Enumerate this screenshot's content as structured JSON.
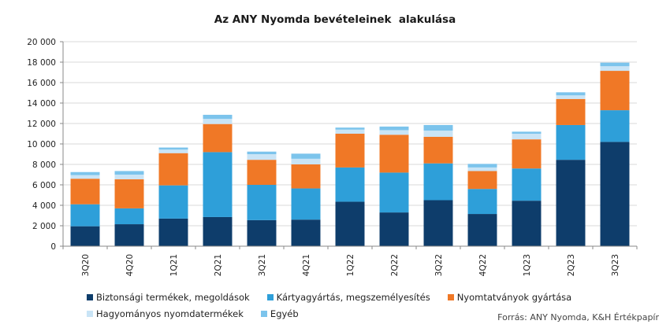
{
  "chart_data": {
    "type": "bar",
    "stacked": true,
    "title": "Az ANY Nyomda bevételeinek  alakulása",
    "categories": [
      "3Q20",
      "4Q20",
      "1Q21",
      "2Q21",
      "3Q21",
      "4Q21",
      "1Q22",
      "2Q22",
      "3Q22",
      "4Q22",
      "1Q23",
      "2Q23",
      "3Q23"
    ],
    "ylim": [
      0,
      20000
    ],
    "yticks": [
      "0",
      "2 000",
      "4 000",
      "6 000",
      "8 000",
      "10 000",
      "12 000",
      "14 000",
      "16 000",
      "18 000",
      "20 000"
    ],
    "grid": true,
    "legend_position": "bottom",
    "series": [
      {
        "name": "Biztonsági termékek, megoldások",
        "color": "#0e3d6b",
        "values": [
          1950,
          2150,
          2700,
          2850,
          2550,
          2600,
          4350,
          3300,
          4500,
          3150,
          4450,
          8450,
          10200
        ]
      },
      {
        "name": "Kártyagyártás, megszemélyesítés",
        "color": "#2e9fd9",
        "values": [
          2150,
          1550,
          3250,
          6350,
          3450,
          3050,
          3350,
          3900,
          3600,
          2450,
          3150,
          3400,
          3100
        ]
      },
      {
        "name": "Nyomtatványok gyártása",
        "color": "#f07826",
        "values": [
          2500,
          2850,
          3150,
          2750,
          2450,
          2350,
          3300,
          3700,
          2600,
          1750,
          2850,
          2550,
          3850
        ]
      },
      {
        "name": "Hagyományos nyomdatermékek",
        "color": "#c9e4f6",
        "values": [
          350,
          450,
          350,
          500,
          550,
          550,
          400,
          450,
          600,
          350,
          550,
          350,
          450
        ]
      },
      {
        "name": "Egyéb",
        "color": "#7cc4ec",
        "values": [
          300,
          350,
          200,
          400,
          250,
          500,
          200,
          350,
          550,
          350,
          200,
          300,
          350
        ]
      }
    ]
  },
  "legend": [
    [
      "Biztonsági termékek, megoldások",
      "Kártyagyártás, megszemélyesítés",
      "Nyomtatványok gyártása"
    ],
    [
      "Hagyományos nyomdatermékek",
      "Egyéb"
    ]
  ],
  "source": "Forrás: ANY Nyomda, K&H Értékpapír"
}
